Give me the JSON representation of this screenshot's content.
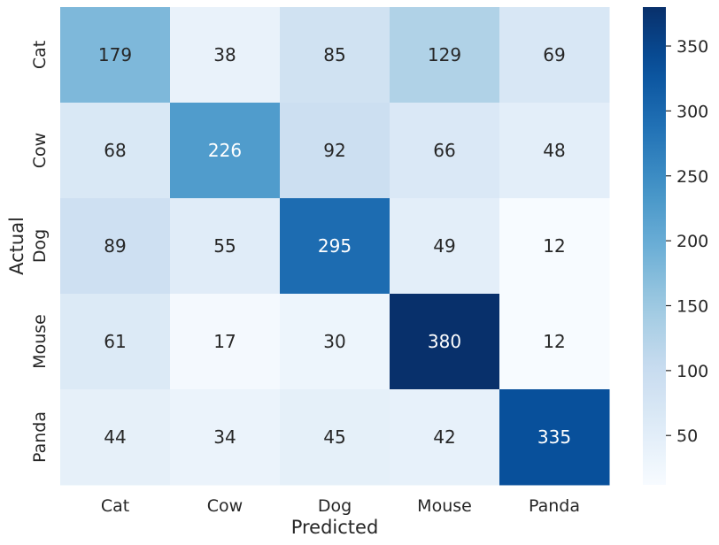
{
  "chart_data": {
    "type": "heatmap",
    "title": "",
    "xlabel": "Predicted",
    "ylabel": "Actual",
    "x_categories": [
      "Cat",
      "Cow",
      "Dog",
      "Mouse",
      "Panda"
    ],
    "y_categories": [
      "Cat",
      "Cow",
      "Dog",
      "Mouse",
      "Panda"
    ],
    "values": [
      [
        179,
        38,
        85,
        129,
        69
      ],
      [
        68,
        226,
        92,
        66,
        48
      ],
      [
        89,
        55,
        295,
        49,
        12
      ],
      [
        61,
        17,
        30,
        380,
        12
      ],
      [
        44,
        34,
        45,
        42,
        335
      ]
    ],
    "colormap": "Blues",
    "vmin": 12,
    "vmax": 380,
    "colorbar_ticks": [
      50,
      100,
      150,
      200,
      250,
      300,
      350
    ],
    "annotations": true
  }
}
